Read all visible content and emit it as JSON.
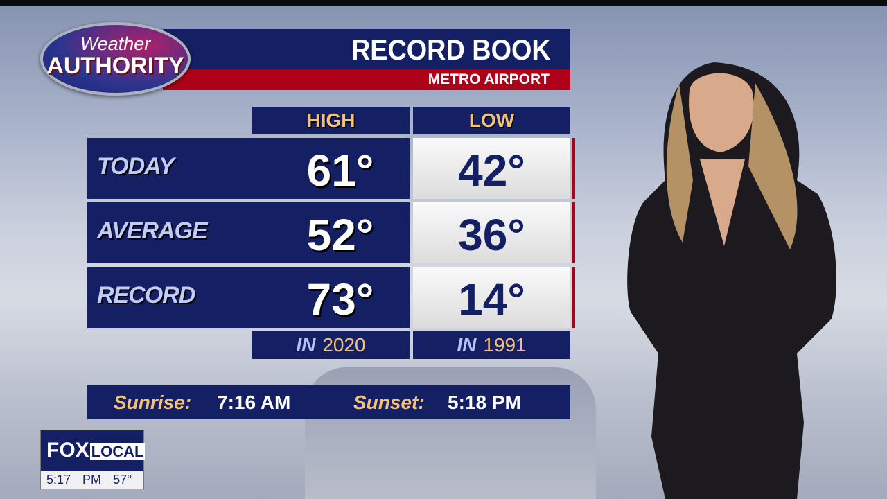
{
  "logo": {
    "line1": "Weather",
    "line2": "AUTHORITY"
  },
  "header": {
    "title": "RECORD BOOK",
    "subtitle": "METRO AIRPORT"
  },
  "columns": {
    "high": "HIGH",
    "low": "LOW"
  },
  "rows": [
    {
      "label": "TODAY",
      "high": "61°",
      "low": "42°"
    },
    {
      "label": "AVERAGE",
      "high": "52°",
      "low": "36°"
    },
    {
      "label": "RECORD",
      "high": "73°",
      "low": "14°"
    }
  ],
  "record_years": {
    "prefix": "IN",
    "high_year": "2020",
    "low_year": "1991"
  },
  "sun": {
    "sunrise_label": "Sunrise:",
    "sunrise": "7:16 AM",
    "sunset_label": "Sunset:",
    "sunset": "5:18 PM"
  },
  "bug": {
    "brand": "FOX",
    "brand2": "LOCAL",
    "time": "5:17 PM",
    "temp": "57°"
  },
  "colors": {
    "navy": "#142063",
    "red": "#ad0019",
    "gold": "#f2c27a"
  }
}
